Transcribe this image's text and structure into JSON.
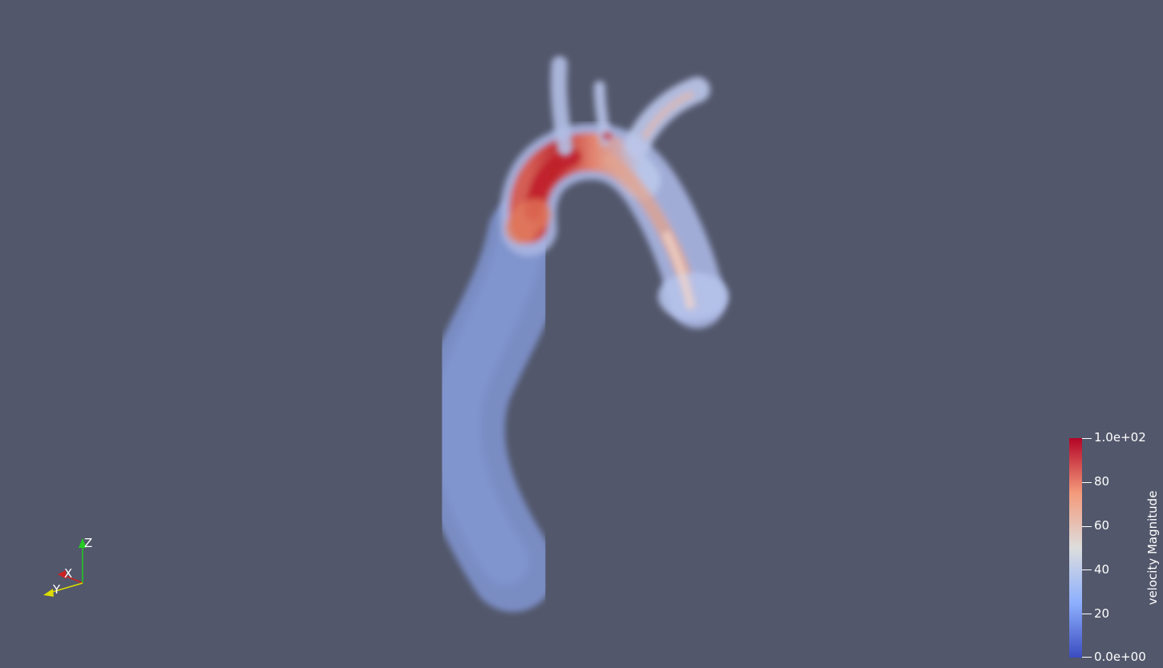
{
  "scene": {
    "background_color": "#52576b",
    "object": "aorta-volume-rendering",
    "colormap": "cool-to-warm",
    "colormap_colors": [
      "#3b4cc0",
      "#8db0fe",
      "#dddddd",
      "#f49a7b",
      "#b40426"
    ]
  },
  "orientation_axes": {
    "z_label": "Z",
    "x_label": "X",
    "y_label": "Y",
    "z_color": "#22cc22",
    "x_color": "#cc2222",
    "y_color": "#dddd00"
  },
  "colorbar": {
    "title": "velocity Magnitude",
    "range": [
      0,
      100
    ],
    "ticks": [
      {
        "value": 100,
        "label": "1.0e+02"
      },
      {
        "value": 80,
        "label": "80"
      },
      {
        "value": 60,
        "label": "60"
      },
      {
        "value": 40,
        "label": "40"
      },
      {
        "value": 20,
        "label": "20"
      },
      {
        "value": 0,
        "label": "0.0e+00"
      }
    ]
  }
}
